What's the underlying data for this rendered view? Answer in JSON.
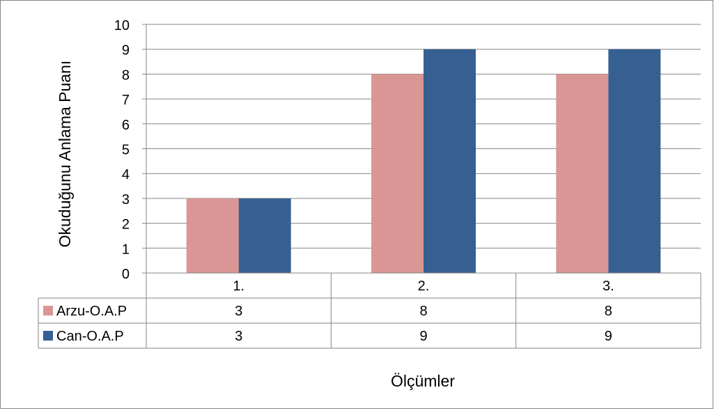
{
  "chart_data": {
    "type": "bar",
    "categories": [
      "1.",
      "2.",
      "3."
    ],
    "series": [
      {
        "name": "Arzu-O.A.P",
        "values": [
          3,
          8,
          8
        ],
        "color": "#d99694"
      },
      {
        "name": "Can-O.A.P",
        "values": [
          3,
          9,
          9
        ],
        "color": "#366092"
      }
    ],
    "xlabel": "Ölçümler",
    "ylabel": "Okuduğunu Anlama Puanı",
    "ylim": [
      0,
      10
    ],
    "yticks": [
      0,
      1,
      2,
      3,
      4,
      5,
      6,
      7,
      8,
      9,
      10
    ],
    "grid": true,
    "legend": "data-table"
  }
}
